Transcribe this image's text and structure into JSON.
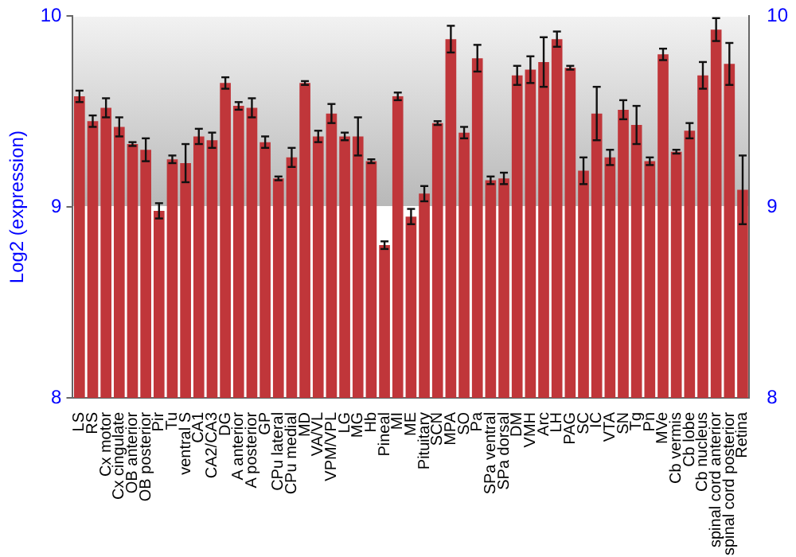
{
  "chart_data": {
    "type": "bar",
    "ylabel": "Log2 (expression)",
    "categories": [
      "LS",
      "RS",
      "Cx motor",
      "Cx cingulate",
      "OB anterior",
      "OB posterior",
      "Pir",
      "Tu",
      "ventral S",
      "CA1",
      "CA2/CA3",
      "DG",
      "A anterior",
      "A posterior",
      "GP",
      "CPu lateral",
      "CPu medial",
      "MD",
      "VA/VL",
      "VPM/VPL",
      "LG",
      "MG",
      "Hb",
      "Pineal",
      "MI",
      "ME",
      "Pituitary",
      "SCN",
      "MPA",
      "SO",
      "Pa",
      "SPa ventral",
      "SPa dorsal",
      "DM",
      "VMH",
      "Arc",
      "LH",
      "PAG",
      "SC",
      "IC",
      "VTA",
      "SN",
      "Tg",
      "Pn",
      "MVe",
      "Cb vermis",
      "Cb lobe",
      "Cb nucleus",
      "spinal cord anterior",
      "spinal cord posterior",
      "Retina"
    ],
    "values": [
      9.58,
      9.45,
      9.52,
      9.42,
      9.33,
      9.3,
      8.98,
      9.25,
      9.23,
      9.37,
      9.35,
      9.65,
      9.53,
      9.52,
      9.34,
      9.15,
      9.26,
      9.65,
      9.37,
      9.49,
      9.37,
      9.37,
      9.24,
      8.8,
      9.58,
      8.95,
      9.07,
      9.44,
      9.88,
      9.39,
      9.78,
      9.14,
      9.15,
      9.69,
      9.72,
      9.76,
      9.88,
      9.73,
      9.19,
      9.49,
      9.26,
      9.51,
      9.43,
      9.24,
      9.8,
      9.29,
      9.4,
      9.69,
      9.93,
      9.75,
      9.09
    ],
    "errors": [
      0.03,
      0.03,
      0.05,
      0.05,
      0.01,
      0.06,
      0.04,
      0.02,
      0.1,
      0.04,
      0.04,
      0.03,
      0.02,
      0.05,
      0.03,
      0.01,
      0.05,
      0.01,
      0.03,
      0.05,
      0.02,
      0.1,
      0.01,
      0.02,
      0.02,
      0.04,
      0.04,
      0.01,
      0.07,
      0.03,
      0.07,
      0.02,
      0.03,
      0.05,
      0.07,
      0.13,
      0.04,
      0.01,
      0.07,
      0.14,
      0.04,
      0.05,
      0.1,
      0.02,
      0.03,
      0.01,
      0.04,
      0.07,
      0.06,
      0.11,
      0.18
    ],
    "color": "#c0363a",
    "ylim": [
      8,
      10
    ],
    "yticks": [
      8,
      9,
      10
    ],
    "y2lim": [
      8,
      10
    ],
    "y2ticks": [
      8,
      9,
      10
    ],
    "grid": "y"
  }
}
